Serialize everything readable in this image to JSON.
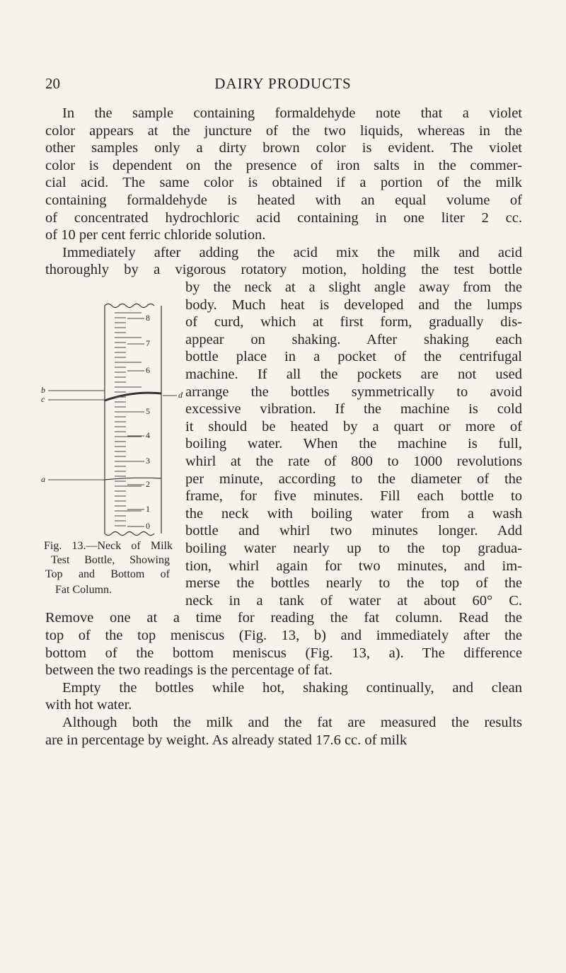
{
  "header": {
    "page_number": "20",
    "running_title": "DAIRY PRODUCTS"
  },
  "body": {
    "paragraphs": [
      {
        "lines": [
          "In the sample containing formaldehyde note that a violet",
          "color appears at the juncture of the two liquids, whereas in the",
          "other samples only a dirty brown color is evident. The violet",
          "color is dependent on the presence of iron salts in the commer-",
          "cial acid. The same color is obtained if a portion of the milk",
          "containing formaldehyde is heated with an equal volume of",
          "of concentrated hydrochloric acid containing in one liter 2 cc.",
          "of 10 per cent ferric chloride solution."
        ]
      },
      {
        "lines": [
          "Immediately after adding the acid mix the milk and acid",
          "thoroughly by a vigorous rotatory motion, holding the test bottle",
          "by the neck at a slight angle away from the",
          "body. Much heat is developed and the lumps",
          "of curd, which at first form, gradually dis-",
          "appear on shaking. After shaking each",
          "bottle place in a pocket of the centrifugal",
          "machine. If all the pockets are not used",
          "arrange the bottles symmetrically to avoid",
          "excessive vibration. If the machine is cold",
          "it should be heated by a quart or more of",
          "boiling water. When the machine is full,",
          "whirl at the rate of 800 to 1000 revolutions",
          "per minute, according to the diameter of the",
          "frame, for five minutes. Fill each bottle to",
          "the neck with boiling water from a wash",
          "bottle and whirl two minutes longer. Add",
          "boiling water nearly up to the top gradua-",
          "tion, whirl again for two minutes, and im-",
          "merse the bottles nearly to the top of the",
          "neck in a tank of water at about 60° C.",
          "Remove one at a time for reading the fat column. Read the",
          "top of the top meniscus (Fig. 13, b) and immediately after the",
          "bottom of the bottom meniscus (Fig. 13, a). The difference",
          "between the two readings is the percentage of fat."
        ]
      },
      {
        "lines": [
          "Empty the bottles while hot, shaking continually, and clean",
          "with hot water."
        ]
      },
      {
        "lines": [
          "Although both the milk and the fat are measured the results",
          "are in percentage by weight. As already stated 17.6 cc. of milk"
        ]
      }
    ]
  },
  "figure": {
    "scale_labels": [
      "8",
      "7",
      "6",
      "5",
      "4",
      "3",
      "2",
      "1",
      "0"
    ],
    "letters": [
      "b",
      "c",
      "d",
      "a"
    ],
    "caption": [
      "Fig. 13.—Neck of Milk",
      "Test Bottle, Showing",
      "Top and Bottom of",
      "Fat Column."
    ]
  }
}
